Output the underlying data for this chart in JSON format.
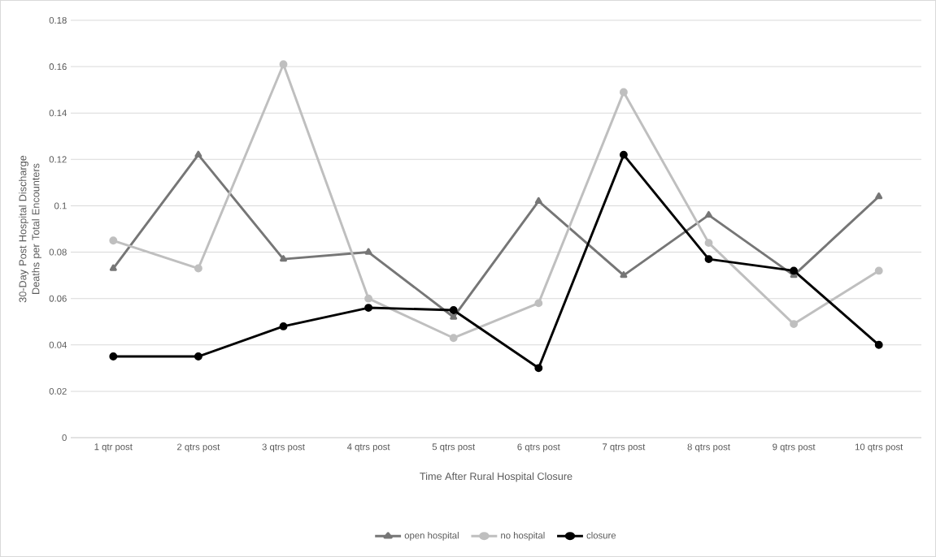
{
  "chart_data": {
    "type": "line",
    "xlabel": "Time After Rural Hospital Closure",
    "ylabel": "30-Day Post Hospital Discharge Deaths per Total Encounters",
    "categories": [
      "1 qtr post",
      "2 qtrs post",
      "3 qtrs post",
      "4 qtrs post",
      "5 qtrs post",
      "6 qtrs post",
      "7 qtrs post",
      "8 qtrs post",
      "9 qtrs post",
      "10 qtrs post"
    ],
    "series": [
      {
        "name": "open hospital",
        "color": "#767676",
        "marker": "triangle",
        "values": [
          0.073,
          0.122,
          0.077,
          0.08,
          0.052,
          0.102,
          0.07,
          0.096,
          0.07,
          0.104
        ]
      },
      {
        "name": "no hospital",
        "color": "#bfbfbf",
        "marker": "circle",
        "values": [
          0.085,
          0.073,
          0.161,
          0.06,
          0.043,
          0.058,
          0.149,
          0.084,
          0.049,
          0.072
        ]
      },
      {
        "name": "closure",
        "color": "#000000",
        "marker": "circle",
        "values": [
          0.035,
          0.035,
          0.048,
          0.056,
          0.055,
          0.03,
          0.122,
          0.077,
          0.072,
          0.04
        ]
      }
    ],
    "ylim": [
      0,
      0.18
    ],
    "yticks": [
      0,
      0.02,
      0.04,
      0.06,
      0.08,
      0.1,
      0.12,
      0.14,
      0.16,
      0.18
    ],
    "grid": "y",
    "legend": "bottom",
    "line_style": "solid"
  }
}
